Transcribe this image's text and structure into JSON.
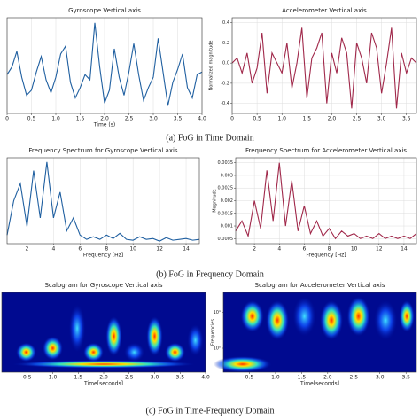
{
  "captions": [
    "(a) FoG in Time Domain",
    "(b) FoG in Frequency Domain",
    "(c) FoG in Time-Frequency Domain"
  ],
  "chart_data": [
    {
      "type": "line",
      "title": "Gyroscope Vertical axis",
      "xlabel": "Time (s)",
      "color": "#1f5fa0",
      "grid": true,
      "x": [
        0,
        0.1,
        0.2,
        0.3,
        0.4,
        0.5,
        0.6,
        0.7,
        0.8,
        0.9,
        1,
        1.1,
        1.2,
        1.3,
        1.4,
        1.5,
        1.6,
        1.7,
        1.8,
        1.9,
        2,
        2.1,
        2.2,
        2.3,
        2.4,
        2.5,
        2.6,
        2.7,
        2.8,
        2.9,
        3,
        3.1,
        3.2,
        3.3,
        3.4,
        3.5,
        3.6,
        3.7,
        3.8,
        3.9,
        4
      ],
      "values": [
        0.3,
        0.6,
        1.2,
        0.2,
        -0.5,
        -0.3,
        0.4,
        1.0,
        0.1,
        -0.4,
        0.2,
        1.1,
        1.4,
        0.0,
        -0.6,
        -0.2,
        0.3,
        0.1,
        2.3,
        0.6,
        -0.8,
        -0.3,
        1.3,
        0.2,
        -0.5,
        0.4,
        1.5,
        0.3,
        -0.7,
        -0.2,
        0.2,
        1.7,
        0.4,
        -0.9,
        0.0,
        0.5,
        1.1,
        -0.2,
        -0.6,
        0.3,
        0.4
      ],
      "xlim": [
        0,
        4
      ],
      "xticks": [
        0,
        0.5,
        {
          "value": 1,
          "label": "1.0"
        },
        1.5,
        {
          "value": 2,
          "label": "2.0"
        },
        2.5,
        {
          "value": 3,
          "label": "3.0"
        },
        3.5,
        {
          "value": 4,
          "label": "4.0"
        }
      ],
      "ylim": [
        -1.2,
        2.5
      ]
    },
    {
      "type": "line",
      "title": "Accelerometer Vertical axis",
      "ylabel": "Normalized magnitude",
      "color": "#a0284a",
      "grid": true,
      "x": [
        0,
        0.1,
        0.2,
        0.3,
        0.4,
        0.5,
        0.6,
        0.7,
        0.8,
        0.9,
        1,
        1.1,
        1.2,
        1.3,
        1.4,
        1.5,
        1.6,
        1.7,
        1.8,
        1.9,
        2,
        2.1,
        2.2,
        2.3,
        2.4,
        2.5,
        2.6,
        2.7,
        2.8,
        2.9,
        3,
        3.1,
        3.2,
        3.3,
        3.4,
        3.5,
        3.6,
        3.7
      ],
      "values": [
        0.0,
        0.05,
        -0.1,
        0.1,
        -0.2,
        -0.05,
        0.3,
        -0.3,
        0.1,
        0.0,
        -0.1,
        0.2,
        -0.25,
        0.0,
        0.35,
        -0.35,
        0.05,
        0.15,
        0.3,
        -0.4,
        0.1,
        -0.1,
        0.25,
        0.1,
        -0.45,
        0.2,
        0.05,
        -0.2,
        0.3,
        0.15,
        -0.3,
        0.0,
        0.35,
        -0.45,
        0.1,
        -0.1,
        0.05,
        0.0
      ],
      "xlim": [
        0,
        3.7
      ],
      "xticks": [
        0,
        0.5,
        {
          "value": 1,
          "label": "1.0"
        },
        1.5,
        {
          "value": 2,
          "label": "2.0"
        },
        2.5,
        {
          "value": 3,
          "label": "3.0"
        },
        3.5
      ],
      "ylim": [
        -0.5,
        0.45
      ],
      "yticks": [
        -0.4,
        -0.2,
        {
          "value": 0,
          "label": "0.0"
        },
        0.2,
        0.4
      ]
    },
    {
      "type": "line",
      "title": "Frequency Spectrum for Gyroscope Vertical axis",
      "xlabel": "Frequency [Hz]",
      "color": "#1f5fa0",
      "grid": true,
      "x": [
        0.5,
        1,
        1.5,
        2,
        2.5,
        3,
        3.5,
        4,
        4.5,
        5,
        5.5,
        6,
        6.5,
        7,
        7.5,
        8,
        8.5,
        9,
        9.5,
        10,
        10.5,
        11,
        11.5,
        12,
        12.5,
        13,
        13.5,
        14,
        14.5,
        15
      ],
      "values": [
        0.1,
        0.5,
        0.7,
        0.2,
        0.85,
        0.3,
        0.95,
        0.3,
        0.6,
        0.15,
        0.3,
        0.1,
        0.05,
        0.08,
        0.05,
        0.1,
        0.06,
        0.12,
        0.05,
        0.04,
        0.08,
        0.05,
        0.06,
        0.03,
        0.07,
        0.04,
        0.05,
        0.06,
        0.04,
        0.05
      ],
      "xlim": [
        0.5,
        15
      ],
      "xticks": [
        2,
        4,
        6,
        8,
        10,
        12,
        14
      ],
      "ylim": [
        0,
        1
      ]
    },
    {
      "type": "line",
      "title": "Frequency Spectrum for Accelerometer Vertical axis",
      "xlabel": "Frequency [Hz]",
      "ylabel": "Magnitude",
      "color": "#a0284a",
      "grid": true,
      "x": [
        0.5,
        1,
        1.5,
        2,
        2.5,
        3,
        3.5,
        4,
        4.5,
        5,
        5.5,
        6,
        6.5,
        7,
        7.5,
        8,
        8.5,
        9,
        9.5,
        10,
        10.5,
        11,
        11.5,
        12,
        12.5,
        13,
        13.5,
        14,
        14.5,
        15
      ],
      "values": [
        0.0008,
        0.0012,
        0.0006,
        0.002,
        0.0009,
        0.0032,
        0.0012,
        0.0035,
        0.001,
        0.0028,
        0.0008,
        0.0018,
        0.0007,
        0.0012,
        0.0006,
        0.0009,
        0.0005,
        0.0008,
        0.0006,
        0.0007,
        0.0005,
        0.0006,
        0.0005,
        0.0007,
        0.0005,
        0.0006,
        0.0005,
        0.0006,
        0.0005,
        0.0007
      ],
      "xlim": [
        0.5,
        15
      ],
      "xticks": [
        2,
        4,
        6,
        8,
        10,
        12,
        14
      ],
      "ylim": [
        0.0003,
        0.0037
      ],
      "yticks": [
        0.0005,
        0.001,
        0.0015,
        0.002,
        0.0025,
        0.003,
        0.0035
      ]
    },
    {
      "type": "heatmap",
      "title": "Scalogram for Gyroscope Vertical axis",
      "xlabel": "Time[seconds]",
      "xlim": [
        0,
        4
      ],
      "xticks": [
        0.5,
        {
          "value": 1,
          "label": "1.0"
        },
        1.5,
        {
          "value": 2,
          "label": "2.0"
        },
        2.5,
        {
          "value": 3,
          "label": "3.0"
        },
        3.5,
        {
          "value": 4,
          "label": "4.0"
        }
      ]
    },
    {
      "type": "heatmap",
      "title": "Scalogram for Accelerometer Vertical axis",
      "xlabel": "Time[seconds]",
      "ylabel": "Frequencies",
      "xlim": [
        0,
        3.7
      ],
      "xticks": [
        0.5,
        {
          "value": 1,
          "label": "1.0"
        },
        1.5,
        {
          "value": 2,
          "label": "2.0"
        },
        2.5,
        {
          "value": 3,
          "label": "3.0"
        },
        3.5
      ],
      "ylim": [
        0,
        1
      ],
      "yticks": [
        {
          "value": 0.75,
          "label": "10¹"
        },
        {
          "value": 0.3,
          "label": "10⁰"
        }
      ]
    }
  ]
}
